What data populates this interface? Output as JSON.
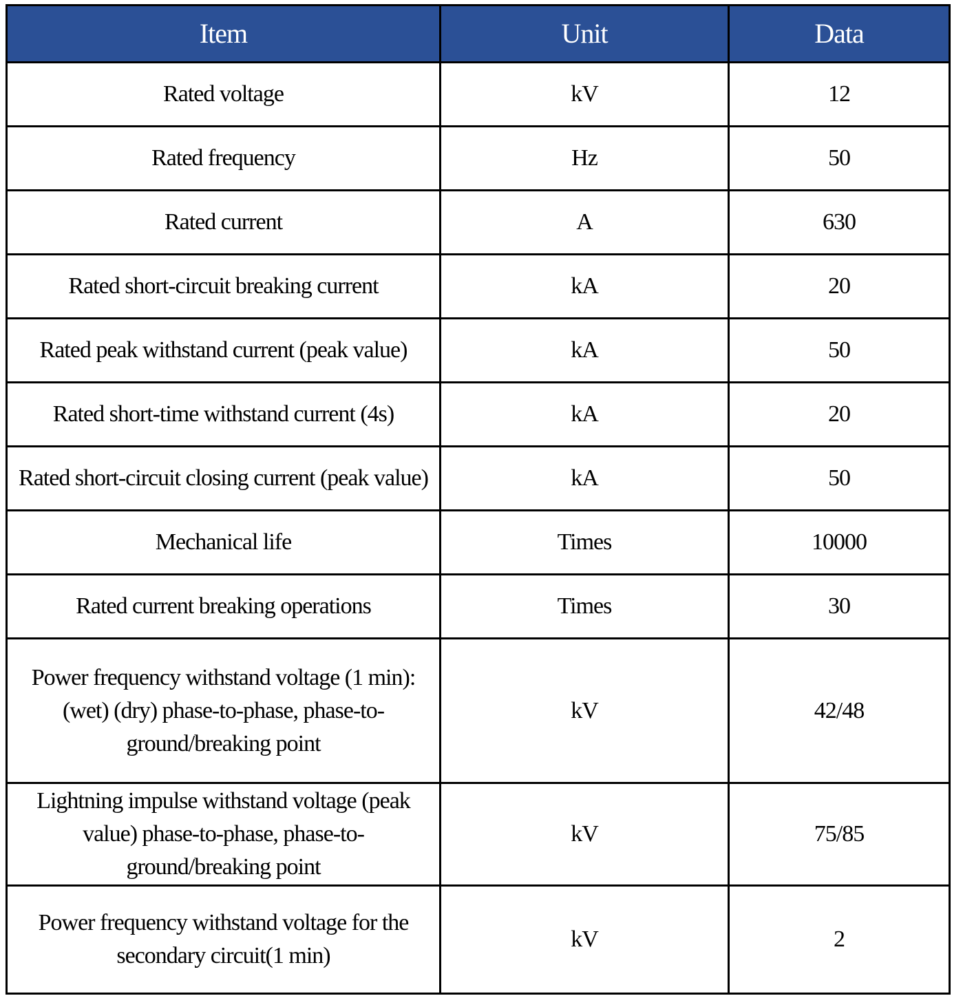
{
  "table": {
    "header_color": "#2B5096",
    "headers": [
      "Item",
      "Unit",
      "Data"
    ],
    "rows": [
      {
        "item": "Rated voltage",
        "unit": "kV",
        "data": "12"
      },
      {
        "item": "Rated frequency",
        "unit": "Hz",
        "data": "50"
      },
      {
        "item": "Rated current",
        "unit": "A",
        "data": "630"
      },
      {
        "item": "Rated short-circuit breaking current",
        "unit": "kA",
        "data": "20"
      },
      {
        "item": "Rated peak withstand current (peak value)",
        "unit": "kA",
        "data": "50"
      },
      {
        "item": "Rated short-time withstand current (4s)",
        "unit": "kA",
        "data": "20"
      },
      {
        "item": "Rated short-circuit closing current (peak value)",
        "unit": "kA",
        "data": "50"
      },
      {
        "item": "Mechanical life",
        "unit": "Times",
        "data": "10000"
      },
      {
        "item": "Rated current breaking operations",
        "unit": "Times",
        "data": "30"
      },
      {
        "item": "Power frequency withstand voltage (1 min): (wet) (dry) phase-to-phase, phase-to-ground/breaking point",
        "unit": "kV",
        "data": "42/48"
      },
      {
        "item": "Lightning impulse withstand voltage (peak value) phase-to-phase, phase-to-ground/breaking point",
        "unit": "kV",
        "data": "75/85"
      },
      {
        "item": "Power frequency withstand voltage for the secondary circuit(1 min)",
        "unit": "kV",
        "data": "2"
      }
    ]
  }
}
